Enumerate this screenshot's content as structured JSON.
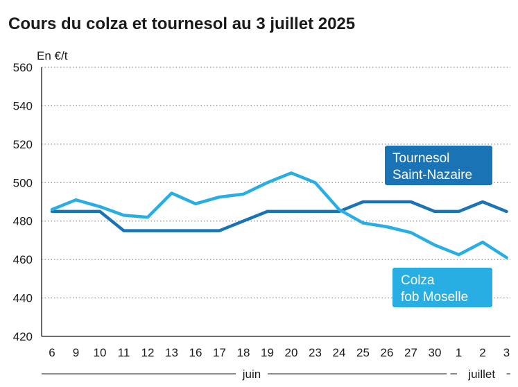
{
  "colors": {
    "tournesol": "#1a73b5",
    "colza": "#29aee3",
    "grid": "#8a8a8a",
    "text": "#1a1a1a"
  },
  "chart_data": {
    "type": "line",
    "title": "Cours du colza et tournesol au 3 juillet 2025",
    "ylabel": "En €/t",
    "xlabel": "",
    "ylim": [
      420,
      560
    ],
    "yticks": [
      420,
      440,
      460,
      480,
      500,
      520,
      540,
      560
    ],
    "grid": true,
    "categories": [
      "6",
      "9",
      "10",
      "11",
      "12",
      "13",
      "16",
      "17",
      "18",
      "19",
      "20",
      "23",
      "24",
      "25",
      "26",
      "27",
      "30",
      "1",
      "2",
      "3"
    ],
    "months": [
      {
        "label": "juin",
        "start_index": 0,
        "end_index": 16
      },
      {
        "label": "juillet",
        "start_index": 17,
        "end_index": 19
      }
    ],
    "series": [
      {
        "name": "Tournesol Saint-Nazaire",
        "legend_lines": [
          "Tournesol",
          "Saint-Nazaire"
        ],
        "color": "#1a73b5",
        "values": [
          485,
          485,
          485,
          475,
          475,
          475,
          475,
          475,
          480,
          485,
          485,
          485,
          485,
          490,
          490,
          490,
          485,
          485,
          490,
          485
        ]
      },
      {
        "name": "Colza fob Moselle",
        "legend_lines": [
          "Colza",
          "fob Moselle"
        ],
        "color": "#29aee3",
        "values": [
          486,
          491,
          487.5,
          483,
          482,
          494.5,
          489,
          492.5,
          494,
          500,
          505,
          500,
          486,
          479,
          477,
          474,
          467.5,
          462.5,
          469,
          461
        ]
      }
    ]
  }
}
